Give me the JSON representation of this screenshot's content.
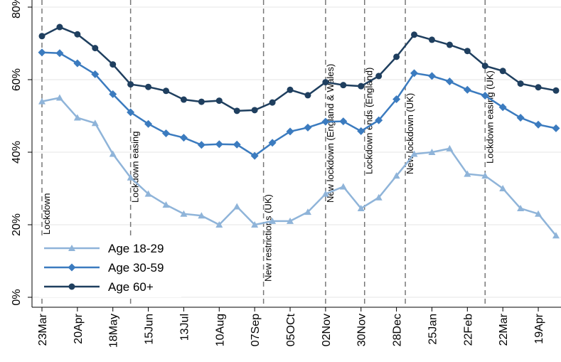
{
  "chart_data": {
    "type": "line",
    "categories": [
      "23Mar",
      null,
      "20Apr",
      null,
      "18May",
      null,
      "15Jun",
      null,
      "13Jul",
      null,
      "10Aug",
      null,
      "07Sep",
      null,
      "05OCt",
      null,
      "02Nov",
      null,
      "30Nov",
      null,
      "28Dec",
      null,
      "25Jan",
      null,
      "22Feb",
      null,
      "22Mar",
      null,
      "19Apr",
      null
    ],
    "series": [
      {
        "name": "Age 18-29",
        "color": "#8fb4d9",
        "marker": "triangle",
        "values": [
          54,
          55,
          49.5,
          48,
          39.5,
          33,
          28.5,
          25.5,
          23,
          22.5,
          20,
          25,
          20,
          21,
          21,
          23.5,
          28.5,
          30.5,
          24.5,
          27.5,
          33.5,
          39.5,
          40,
          41,
          34,
          33.5,
          30,
          24.5,
          23,
          17
        ]
      },
      {
        "name": "Age 30-59",
        "color": "#3b7bbf",
        "marker": "diamond",
        "values": [
          67.5,
          67.3,
          64.5,
          61.5,
          56,
          51,
          47.8,
          45.2,
          44,
          42,
          42.2,
          42.1,
          39,
          42.6,
          45.7,
          46.8,
          48.4,
          48.5,
          45.8,
          48.8,
          54.6,
          61.8,
          61,
          59.5,
          57.2,
          55.6,
          52.4,
          49.5,
          47.6,
          46.6
        ]
      },
      {
        "name": "Age 60+",
        "color": "#1f3f5f",
        "marker": "circle",
        "values": [
          72,
          74.5,
          72.5,
          68.7,
          64.2,
          58.7,
          58,
          56.9,
          54.5,
          53.9,
          54.2,
          51.4,
          51.6,
          53.7,
          57.2,
          55.7,
          59.3,
          58.5,
          58.2,
          61,
          66.3,
          72.4,
          71,
          69.6,
          67.9,
          63.8,
          62.4,
          58.9,
          57.9,
          57
        ]
      }
    ],
    "events": [
      {
        "label": "Lockdown",
        "x": 0
      },
      {
        "label": "Lockdown easing",
        "x": 5
      },
      {
        "label": "New restrictions (UK)",
        "x": 12.5
      },
      {
        "label": "New lockdown (England & Wales)",
        "x": 16
      },
      {
        "label": "Lockdown ends (England)",
        "x": 18.2
      },
      {
        "label": "New lockdown (UK)",
        "x": 20.5
      },
      {
        "label": "Lockdown easing (UK)",
        "x": 25
      }
    ],
    "ylim": [
      0,
      80
    ],
    "yticks": [
      {
        "value": 0,
        "label": "0%"
      },
      {
        "value": 20,
        "label": "20%"
      },
      {
        "value": 40,
        "label": "40%"
      },
      {
        "value": 60,
        "label": "60%"
      },
      {
        "value": 80,
        "label": "80%"
      }
    ],
    "grid": true,
    "legend": "lower left"
  }
}
